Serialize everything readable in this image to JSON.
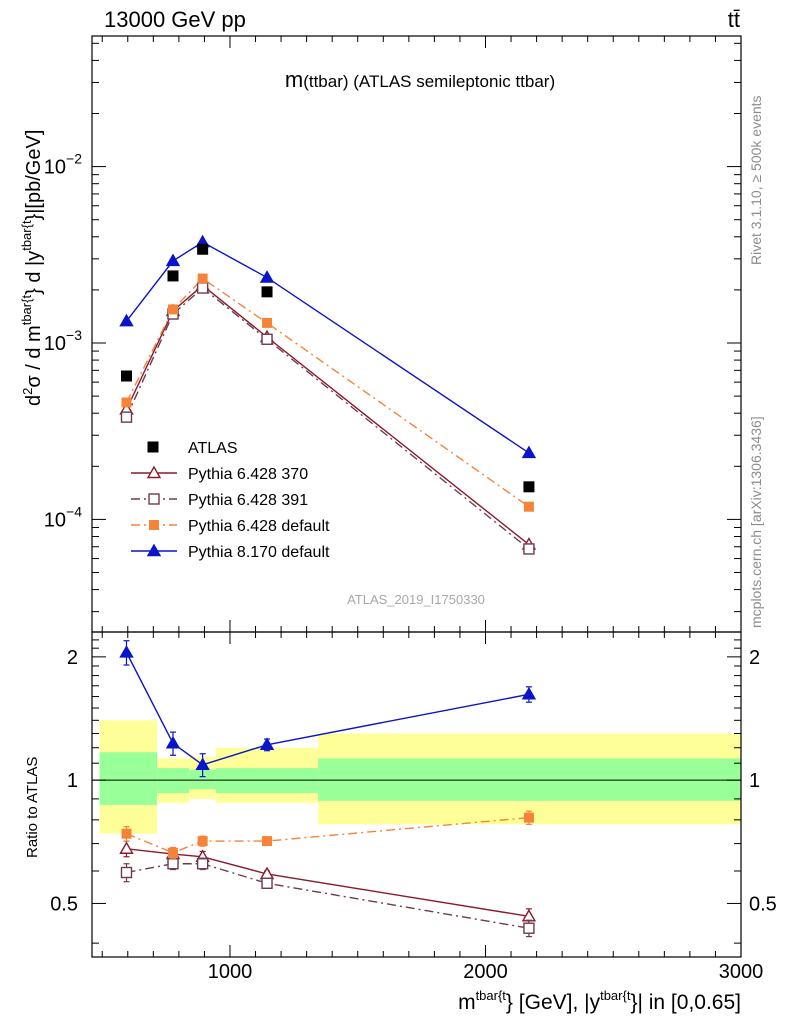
{
  "header": {
    "left": "13000 GeV pp",
    "right": "tt̄"
  },
  "title": {
    "m": "m",
    "rest": "(ttbar) (ATLAS semileptonic ttbar)"
  },
  "watermark": "ATLAS_2019_I1750330",
  "side_top": "Rivet 3.1.10, ≥ 500k events",
  "side_bottom": "mcplots.cern.ch [arXiv:1306.3436]",
  "ylabel_main": {
    "d2": "d",
    "sup2": "2",
    "sigma": "σ / d m",
    "sup_tbar1": "tbar{t",
    "mid": "} d |y",
    "sup_tbar2": "tbar{t",
    "end": "}|[pb/GeV]"
  },
  "ylabel_ratio": "Ratio to ATLAS",
  "xlabel": {
    "m": "m",
    "sup1": "tbar{t",
    "mid": "} [GeV], |y",
    "sup2": "tbar{t",
    "end": "}| in [0,0.65]"
  },
  "legend": [
    {
      "key": "atlas",
      "label": "ATLAS"
    },
    {
      "key": "py6_370",
      "label": "Pythia 6.428 370"
    },
    {
      "key": "py6_391",
      "label": "Pythia 6.428 391"
    },
    {
      "key": "py6_def",
      "label": "Pythia 6.428 default"
    },
    {
      "key": "py8_def",
      "label": "Pythia 8.170 default"
    }
  ],
  "chart_data": {
    "type": "scatter",
    "x_range": [
      460,
      3000
    ],
    "main_y_range": [
      2.3e-05,
      0.055
    ],
    "main_y_log": true,
    "main_y_ticks": [
      {
        "v": 0.0001,
        "base": "10",
        "exp": "−4"
      },
      {
        "v": 0.001,
        "base": "10",
        "exp": "−3"
      },
      {
        "v": 0.01,
        "base": "10",
        "exp": "−2"
      }
    ],
    "ratio_y_range": [
      0.37,
      2.3
    ],
    "ratio_y_log": true,
    "ratio_y_ticks": [
      {
        "v": 0.5,
        "label": "0.5"
      },
      {
        "v": 1,
        "label": "1"
      },
      {
        "v": 2,
        "label": "2"
      }
    ],
    "x_ticks": [
      {
        "v": 1000,
        "label": "1000"
      },
      {
        "v": 2000,
        "label": "2000"
      },
      {
        "v": 3000,
        "label": "3000"
      }
    ],
    "bins": [
      [
        490,
        715
      ],
      [
        715,
        840
      ],
      [
        840,
        945
      ],
      [
        945,
        1345
      ],
      [
        1345,
        3000
      ]
    ],
    "x": [
      595,
      777,
      893,
      1145,
      2170
    ],
    "data": {
      "values": [
        0.00065,
        0.0024,
        0.0034,
        0.00195,
        0.000153
      ],
      "band_green": [
        [
          0.87,
          1.17
        ],
        [
          0.93,
          1.07
        ],
        [
          0.95,
          1.06
        ],
        [
          0.93,
          1.07
        ],
        [
          0.89,
          1.13
        ]
      ],
      "band_yellow": [
        [
          0.74,
          1.4
        ],
        [
          0.88,
          1.13
        ],
        [
          0.9,
          1.14
        ],
        [
          0.88,
          1.2
        ],
        [
          0.78,
          1.3
        ]
      ]
    },
    "series": [
      {
        "key": "py6_370",
        "label": "Pythia 6.428 370",
        "color": "#8b1a2a",
        "dash": "",
        "marker": "triangle-open",
        "main": [
          0.00042,
          0.00152,
          0.00212,
          0.00108,
          7.2e-05
        ],
        "ratio": [
          0.68,
          0.66,
          0.65,
          0.59,
          0.465
        ],
        "ratio_err": [
          0.03,
          0.02,
          0.02,
          0.01,
          0.02
        ]
      },
      {
        "key": "py6_391",
        "label": "Pythia 6.428 391",
        "color": "#6e3a50",
        "dash": "9,4,2,4",
        "marker": "square-open",
        "main": [
          0.00038,
          0.00146,
          0.00205,
          0.00105,
          6.8e-05
        ],
        "ratio": [
          0.595,
          0.625,
          0.625,
          0.56,
          0.435
        ],
        "ratio_err": [
          0.03,
          0.02,
          0.02,
          0.01,
          0.02
        ]
      },
      {
        "key": "py6_def",
        "label": "Pythia 6.428 default",
        "color": "#f5843a",
        "dash": "9,4,2,4",
        "marker": "square-filled",
        "main": [
          0.00046,
          0.00155,
          0.00232,
          0.0013,
          0.000118
        ],
        "ratio": [
          0.74,
          0.665,
          0.71,
          0.71,
          0.81
        ],
        "ratio_err": [
          0.03,
          0.02,
          0.02,
          0.01,
          0.03
        ]
      },
      {
        "key": "py8_def",
        "label": "Pythia 8.170 default",
        "color": "#0a14c8",
        "dash": "",
        "marker": "triangle-filled",
        "main": [
          0.00133,
          0.00292,
          0.00373,
          0.00235,
          0.000238
        ],
        "ratio": [
          2.05,
          1.23,
          1.09,
          1.22,
          1.62
        ],
        "ratio_err": [
          0.14,
          0.08,
          0.07,
          0.04,
          0.07
        ]
      }
    ]
  }
}
